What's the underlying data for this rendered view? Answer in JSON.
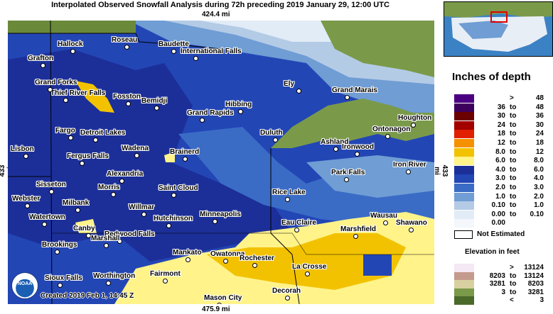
{
  "title": "Interpolated Observed Snowfall Analysis during 72h preceding 2019 January 29, 12:00 UTC",
  "distances": {
    "top": "424.4 mi",
    "bottom": "475.9 mi",
    "left": "433 mi",
    "right": "433 mi"
  },
  "created": "Created 2019 Feb 1, 14:45 Z",
  "noaa_logo_text": "NOAA",
  "legend": {
    "title": "Inches of depth",
    "rows": [
      {
        "a": "",
        "to": ">",
        "b": "48",
        "color": "#4b0082"
      },
      {
        "a": "36",
        "to": "to",
        "b": "48",
        "color": "#3d005c"
      },
      {
        "a": "30",
        "to": "to",
        "b": "36",
        "color": "#6b0000"
      },
      {
        "a": "24",
        "to": "to",
        "b": "30",
        "color": "#a30000"
      },
      {
        "a": "18",
        "to": "to",
        "b": "24",
        "color": "#e02000"
      },
      {
        "a": "12",
        "to": "to",
        "b": "18",
        "color": "#f59000"
      },
      {
        "a": "8.0",
        "to": "to",
        "b": "12",
        "color": "#f2c200"
      },
      {
        "a": "6.0",
        "to": "to",
        "b": "8.0",
        "color": "#fff38a"
      },
      {
        "a": "4.0",
        "to": "to",
        "b": "6.0",
        "color": "#1c2f99"
      },
      {
        "a": "3.0",
        "to": "to",
        "b": "4.0",
        "color": "#2346b5"
      },
      {
        "a": "2.0",
        "to": "to",
        "b": "3.0",
        "color": "#3a6cc6"
      },
      {
        "a": "1.0",
        "to": "to",
        "b": "2.0",
        "color": "#6f9dd4"
      },
      {
        "a": "0.10",
        "to": "to",
        "b": "1.0",
        "color": "#b4cbe6"
      },
      {
        "a": "0.00",
        "to": "to",
        "b": "0.10",
        "color": "#e2ecf6"
      },
      {
        "a": "0.00",
        "to": "",
        "b": "",
        "color": "#f4f7fb"
      }
    ],
    "not_estimated": "Not Estimated",
    "elevation_title": "Elevation in feet",
    "elevation_rows": [
      {
        "a": "",
        "to": ">",
        "b": "13124",
        "color": "#f4e8f4"
      },
      {
        "a": "8203",
        "to": "to",
        "b": "13124",
        "color": "#c49a8c"
      },
      {
        "a": "3281",
        "to": "to",
        "b": "8203",
        "color": "#d8d0a0"
      },
      {
        "a": "3",
        "to": "to",
        "b": "3281",
        "color": "#7a9a4a"
      },
      {
        "a": "",
        "to": "<",
        "b": "3",
        "color": "#4a6a2a"
      }
    ]
  },
  "cities": [
    {
      "name": "Hallock"
    },
    {
      "name": "Roseau"
    },
    {
      "name": "Baudette"
    },
    {
      "name": "International Falls"
    },
    {
      "name": "Grafton"
    },
    {
      "name": "Thief River Falls"
    },
    {
      "name": "Grand Forks"
    },
    {
      "name": "Fosston"
    },
    {
      "name": "Bemidji"
    },
    {
      "name": "Ely"
    },
    {
      "name": "Grand Marais"
    },
    {
      "name": "Hibbing"
    },
    {
      "name": "Grand Rapids"
    },
    {
      "name": "Houghton"
    },
    {
      "name": "Fargo"
    },
    {
      "name": "Detroit Lakes"
    },
    {
      "name": "Duluth"
    },
    {
      "name": "Ontonagon"
    },
    {
      "name": "Lisbon"
    },
    {
      "name": "Wadena"
    },
    {
      "name": "Ashland"
    },
    {
      "name": "Ironwood"
    },
    {
      "name": "Fergus Falls"
    },
    {
      "name": "Brainerd"
    },
    {
      "name": "Iron River"
    },
    {
      "name": "Alexandria"
    },
    {
      "name": "Park Falls"
    },
    {
      "name": "Sisseton"
    },
    {
      "name": "Morris"
    },
    {
      "name": "Saint Cloud"
    },
    {
      "name": "Rice Lake"
    },
    {
      "name": "Webster"
    },
    {
      "name": "Milbank"
    },
    {
      "name": "Willmar"
    },
    {
      "name": "Watertown"
    },
    {
      "name": "Hutchinson"
    },
    {
      "name": "Minneapolis"
    },
    {
      "name": "Wausau"
    },
    {
      "name": "Eau Claire"
    },
    {
      "name": "Shawano"
    },
    {
      "name": "Canby"
    },
    {
      "name": "Redwood Falls"
    },
    {
      "name": "Marshfield"
    },
    {
      "name": "Marshall"
    },
    {
      "name": "Brookings"
    },
    {
      "name": "Mankato"
    },
    {
      "name": "Owatonna"
    },
    {
      "name": "Rochester"
    },
    {
      "name": "La Crosse"
    },
    {
      "name": "Sioux Falls"
    },
    {
      "name": "Worthington"
    },
    {
      "name": "Fairmont"
    },
    {
      "name": "Decorah"
    },
    {
      "name": "Mason City"
    }
  ]
}
